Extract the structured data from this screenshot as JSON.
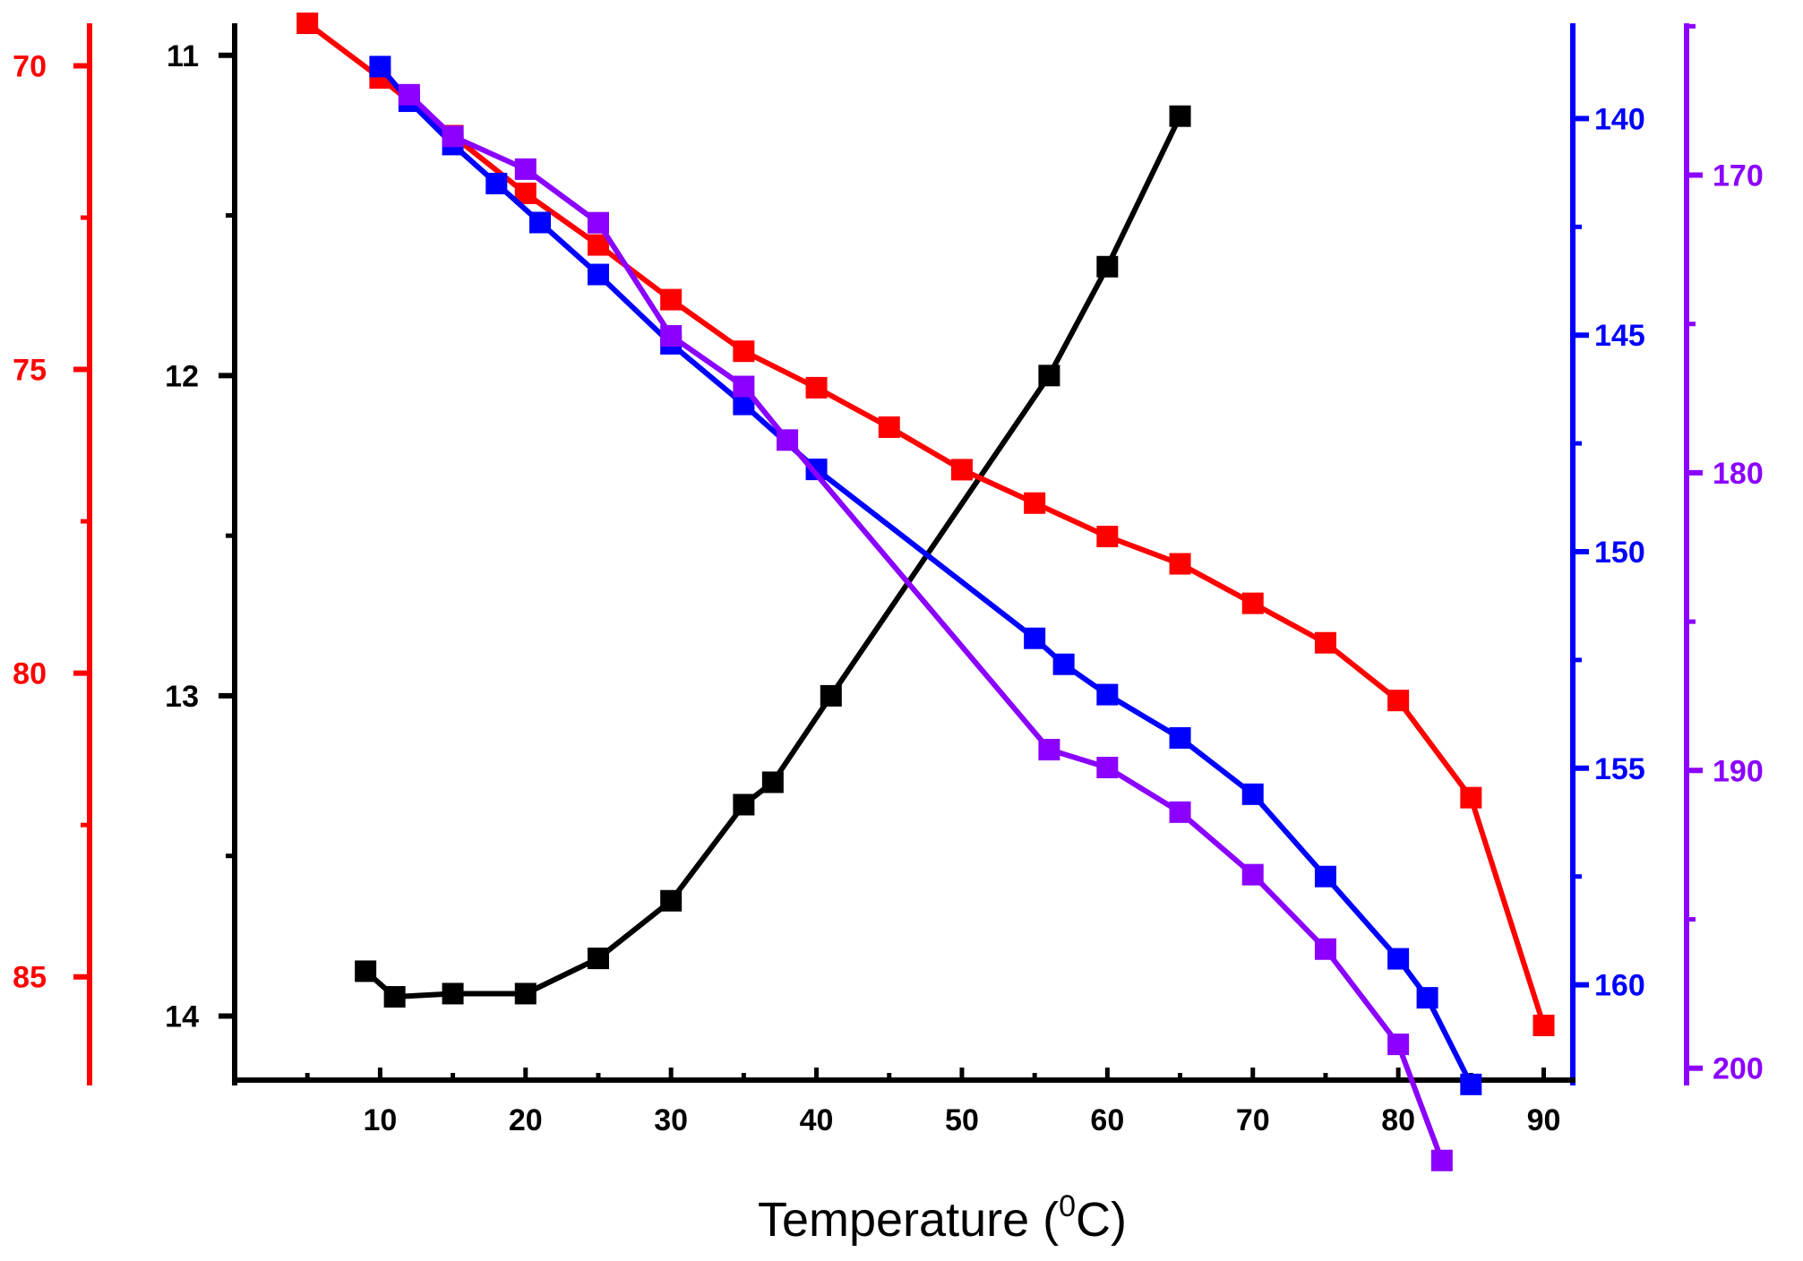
{
  "chart_data": {
    "type": "line",
    "title": "",
    "xlabel": {
      "prefix": "Temperature (",
      "sup": "0",
      "suffix": "C)"
    },
    "xlim": [
      0,
      92
    ],
    "x_ticks": [
      10,
      20,
      30,
      40,
      50,
      60,
      70,
      80,
      90
    ],
    "axes": {
      "black": {
        "color": "#000000",
        "lim": [
          10.9,
          14.2
        ],
        "ticks": [
          11,
          12,
          13,
          14
        ],
        "position": "left-inner",
        "inverted": true
      },
      "red": {
        "color": "#ff0000",
        "lim": [
          69.3,
          86.7
        ],
        "ticks": [
          70,
          75,
          80,
          85
        ],
        "position": "left-outer",
        "inverted": true
      },
      "blue": {
        "color": "#0000ff",
        "lim": [
          137.8,
          162.2
        ],
        "ticks": [
          140,
          145,
          150,
          155,
          160
        ],
        "position": "right-inner",
        "inverted": true
      },
      "purple": {
        "color": "#8b00ff",
        "lim": [
          164.9,
          200.4
        ],
        "ticks": [
          170,
          180,
          190,
          200
        ],
        "position": "right-outer",
        "inverted": true
      }
    },
    "series": [
      {
        "name": "black",
        "axis": "black",
        "color": "#000000",
        "x": [
          9,
          11,
          15,
          20,
          25,
          30,
          35,
          37,
          41,
          56,
          60,
          65
        ],
        "y": [
          13.86,
          13.94,
          13.93,
          13.93,
          13.82,
          13.64,
          13.34,
          13.27,
          13.0,
          12.0,
          11.66,
          11.19
        ]
      },
      {
        "name": "red",
        "axis": "red",
        "color": "#ff0000",
        "x": [
          5,
          10,
          15,
          20,
          25,
          30,
          35,
          40,
          45,
          50,
          55,
          60,
          65,
          70,
          75,
          80,
          85,
          90
        ],
        "y": [
          69.3,
          70.2,
          71.15,
          72.1,
          72.95,
          73.85,
          74.7,
          75.3,
          75.95,
          76.65,
          77.2,
          77.75,
          78.2,
          78.85,
          79.5,
          80.45,
          82.05,
          85.8
        ]
      },
      {
        "name": "blue",
        "axis": "blue",
        "color": "#0000ff",
        "x": [
          10,
          12,
          15,
          18,
          21,
          25,
          30,
          35,
          40,
          55,
          57,
          60,
          65,
          70,
          75,
          80,
          82,
          85
        ],
        "y": [
          138.8,
          139.6,
          140.6,
          141.5,
          142.4,
          143.6,
          145.2,
          146.6,
          148.1,
          152.0,
          152.6,
          153.3,
          154.3,
          155.6,
          157.5,
          159.4,
          160.3,
          162.3
        ]
      },
      {
        "name": "purple",
        "axis": "purple",
        "color": "#8b00ff",
        "x": [
          12,
          15,
          20,
          25,
          30,
          35,
          38,
          56,
          60,
          65,
          70,
          75,
          80,
          83
        ],
        "y": [
          167.3,
          168.7,
          169.8,
          171.6,
          175.4,
          177.1,
          178.9,
          189.3,
          189.9,
          191.4,
          193.5,
          196.0,
          199.2,
          203.1
        ]
      }
    ]
  }
}
